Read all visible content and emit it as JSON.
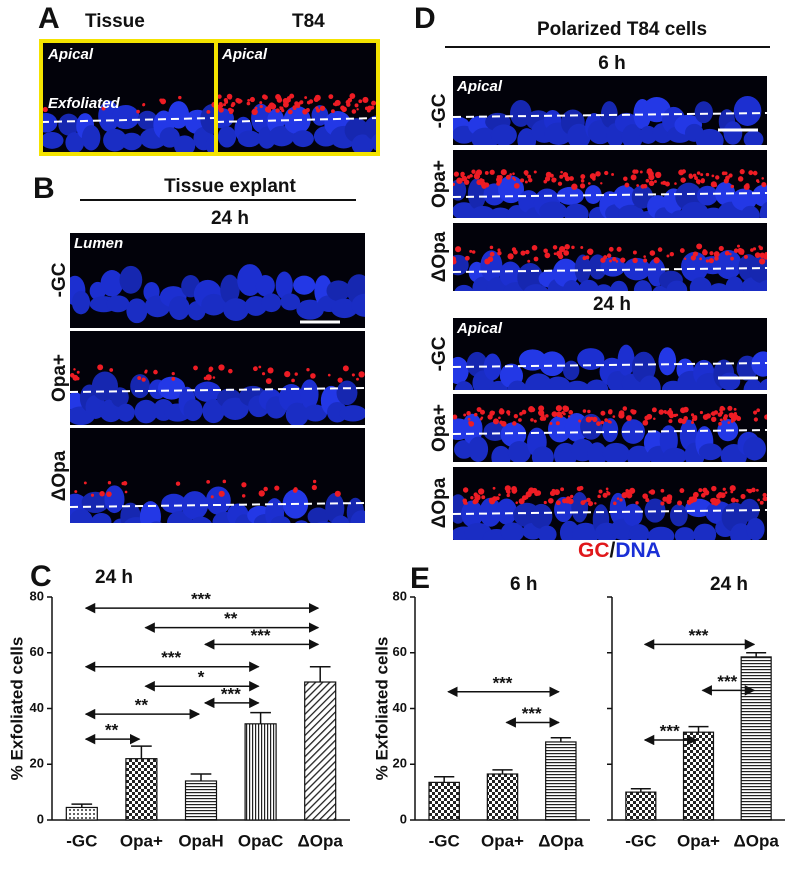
{
  "panels": {
    "A": {
      "letter": "A",
      "left_title": "Tissue",
      "right_title": "T84",
      "left_apical": "Apical",
      "exfoliated": "Exfoliated",
      "right_apical": "Apical"
    },
    "B": {
      "letter": "B",
      "title": "Tissue explant",
      "time": "24 h",
      "lumen": "Lumen",
      "rows": [
        "-GC",
        "Opa+",
        "ΔOpa"
      ]
    },
    "D": {
      "letter": "D",
      "title": "Polarized T84 cells",
      "time_1": "6 h",
      "apical_1": "Apical",
      "rows_1": [
        "-GC",
        "Opa+",
        "ΔOpa"
      ],
      "time_2": "24 h",
      "apical_2": "Apical",
      "rows_2": [
        "-GC",
        "Opa+",
        "ΔOpa"
      ]
    },
    "legend": {
      "gc": "GC",
      "sep": "/",
      "dna": "DNA"
    },
    "C": {
      "letter": "C"
    },
    "E": {
      "letter": "E"
    }
  },
  "chart_data": [
    {
      "type": "bar",
      "title": "24 h",
      "ylabel": "% Exfoliated cells",
      "categories": [
        "-GC",
        "Opa+",
        "OpaH",
        "OpaC",
        "ΔOpa"
      ],
      "values": [
        4.5,
        22,
        14,
        34.5,
        49.5
      ],
      "errors": [
        1.2,
        4.5,
        2.5,
        4,
        5.5
      ],
      "fills": [
        "dots",
        "checker",
        "hlines",
        "vlines",
        "diag"
      ],
      "ylim": [
        0,
        80
      ],
      "yticks": [
        0,
        20,
        40,
        60,
        80
      ],
      "tick_labels": true,
      "comparisons": [
        {
          "from": 0,
          "to": 4,
          "y": 76,
          "label": "***"
        },
        {
          "from": 1,
          "to": 4,
          "y": 69,
          "label": "**"
        },
        {
          "from": 2,
          "to": 4,
          "y": 63,
          "label": "***"
        },
        {
          "from": 0,
          "to": 3,
          "y": 55,
          "label": "***"
        },
        {
          "from": 1,
          "to": 3,
          "y": 48,
          "label": "*"
        },
        {
          "from": 2,
          "to": 3,
          "y": 42,
          "label": "***"
        },
        {
          "from": 0,
          "to": 2,
          "y": 38,
          "label": "**"
        },
        {
          "from": 0,
          "to": 1,
          "y": 29,
          "label": "**"
        }
      ]
    },
    {
      "type": "bar",
      "title": "6 h",
      "ylabel": "% Exfoliated cells",
      "categories": [
        "-GC",
        "Opa+",
        "ΔOpa"
      ],
      "values": [
        13.5,
        16.5,
        28
      ],
      "errors": [
        2,
        1.5,
        1.5
      ],
      "fills": [
        "checker",
        "checker",
        "hlines"
      ],
      "ylim": [
        0,
        80
      ],
      "yticks": [
        0,
        20,
        40,
        60,
        80
      ],
      "tick_labels": true,
      "comparisons": [
        {
          "from": 0,
          "to": 2,
          "y": 46,
          "label": "***"
        },
        {
          "from": 1,
          "to": 2,
          "y": 35,
          "label": "***"
        }
      ]
    },
    {
      "type": "bar",
      "title": "24 h",
      "categories": [
        "-GC",
        "Opa+",
        "ΔOpa"
      ],
      "values": [
        10,
        31.5,
        58.5
      ],
      "errors": [
        1.2,
        2,
        1.5
      ],
      "fills": [
        "checker",
        "checker",
        "hlines"
      ],
      "ylim": [
        0,
        80
      ],
      "yticks": [
        0,
        20,
        40,
        60,
        80
      ],
      "tick_labels": false,
      "comparisons": [
        {
          "from": 0,
          "to": 2,
          "y": 63,
          "label": "***"
        },
        {
          "from": 1,
          "to": 2,
          "y": 46.5,
          "label": "***"
        },
        {
          "from": 0,
          "to": 1,
          "y": 28.7,
          "label": "***"
        }
      ]
    }
  ]
}
